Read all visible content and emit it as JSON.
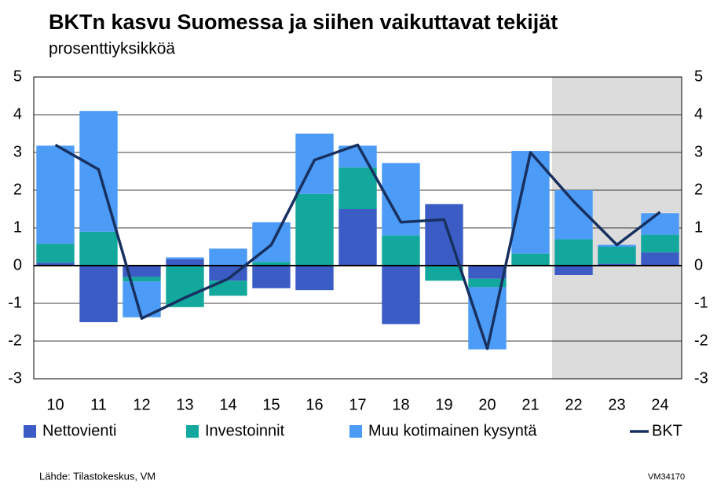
{
  "chart_data": {
    "type": "stacked_bar_line",
    "title": "BKTn kasvu Suomessa ja siihen vaikuttavat tekijät",
    "subtitle": "prosenttiyksikköä",
    "categories": [
      "10",
      "11",
      "12",
      "13",
      "14",
      "15",
      "16",
      "17",
      "18",
      "19",
      "20",
      "21",
      "22",
      "23",
      "24"
    ],
    "series": [
      {
        "name": "Nettovienti",
        "color": "#3b5cc4",
        "kind": "bar",
        "values": [
          0.08,
          -1.5,
          -0.3,
          0.17,
          -0.4,
          -0.6,
          -0.65,
          1.5,
          -1.55,
          1.63,
          -0.35,
          0.02,
          -0.25,
          0.05,
          0.35
        ]
      },
      {
        "name": "Investoinnit",
        "color": "#12a89d",
        "kind": "bar",
        "values": [
          0.5,
          0.9,
          -0.12,
          -1.1,
          -0.4,
          0.1,
          1.9,
          1.1,
          0.8,
          -0.4,
          -0.22,
          0.3,
          0.7,
          0.45,
          0.47
        ]
      },
      {
        "name": "Muu kotimainen kysyntä",
        "color": "#4c9bf6",
        "kind": "bar",
        "values": [
          2.6,
          3.2,
          -0.95,
          0.05,
          0.45,
          1.05,
          1.6,
          0.58,
          1.92,
          0,
          -1.65,
          2.72,
          1.3,
          0.05,
          0.57
        ]
      },
      {
        "name": "BKT",
        "color": "#17305f",
        "kind": "line",
        "values": [
          3.2,
          2.55,
          -1.4,
          -0.85,
          -0.35,
          0.55,
          2.8,
          3.2,
          1.15,
          1.22,
          -2.2,
          3.0,
          1.7,
          0.55,
          1.42
        ]
      }
    ],
    "ylim": [
      -3,
      5
    ],
    "yticks": [
      -3,
      -2,
      -1,
      0,
      1,
      2,
      3,
      4,
      5
    ],
    "y2lim": [
      -3,
      5
    ],
    "y2ticks": [
      -3,
      -2,
      -1,
      0,
      1,
      2,
      3,
      4,
      5
    ],
    "grid": true,
    "legend": "bottom",
    "shade_from": "22",
    "shade_color": "#dcdcdc",
    "source": "Lähde: Tilastokeskus, VM",
    "code": "VM34170"
  }
}
